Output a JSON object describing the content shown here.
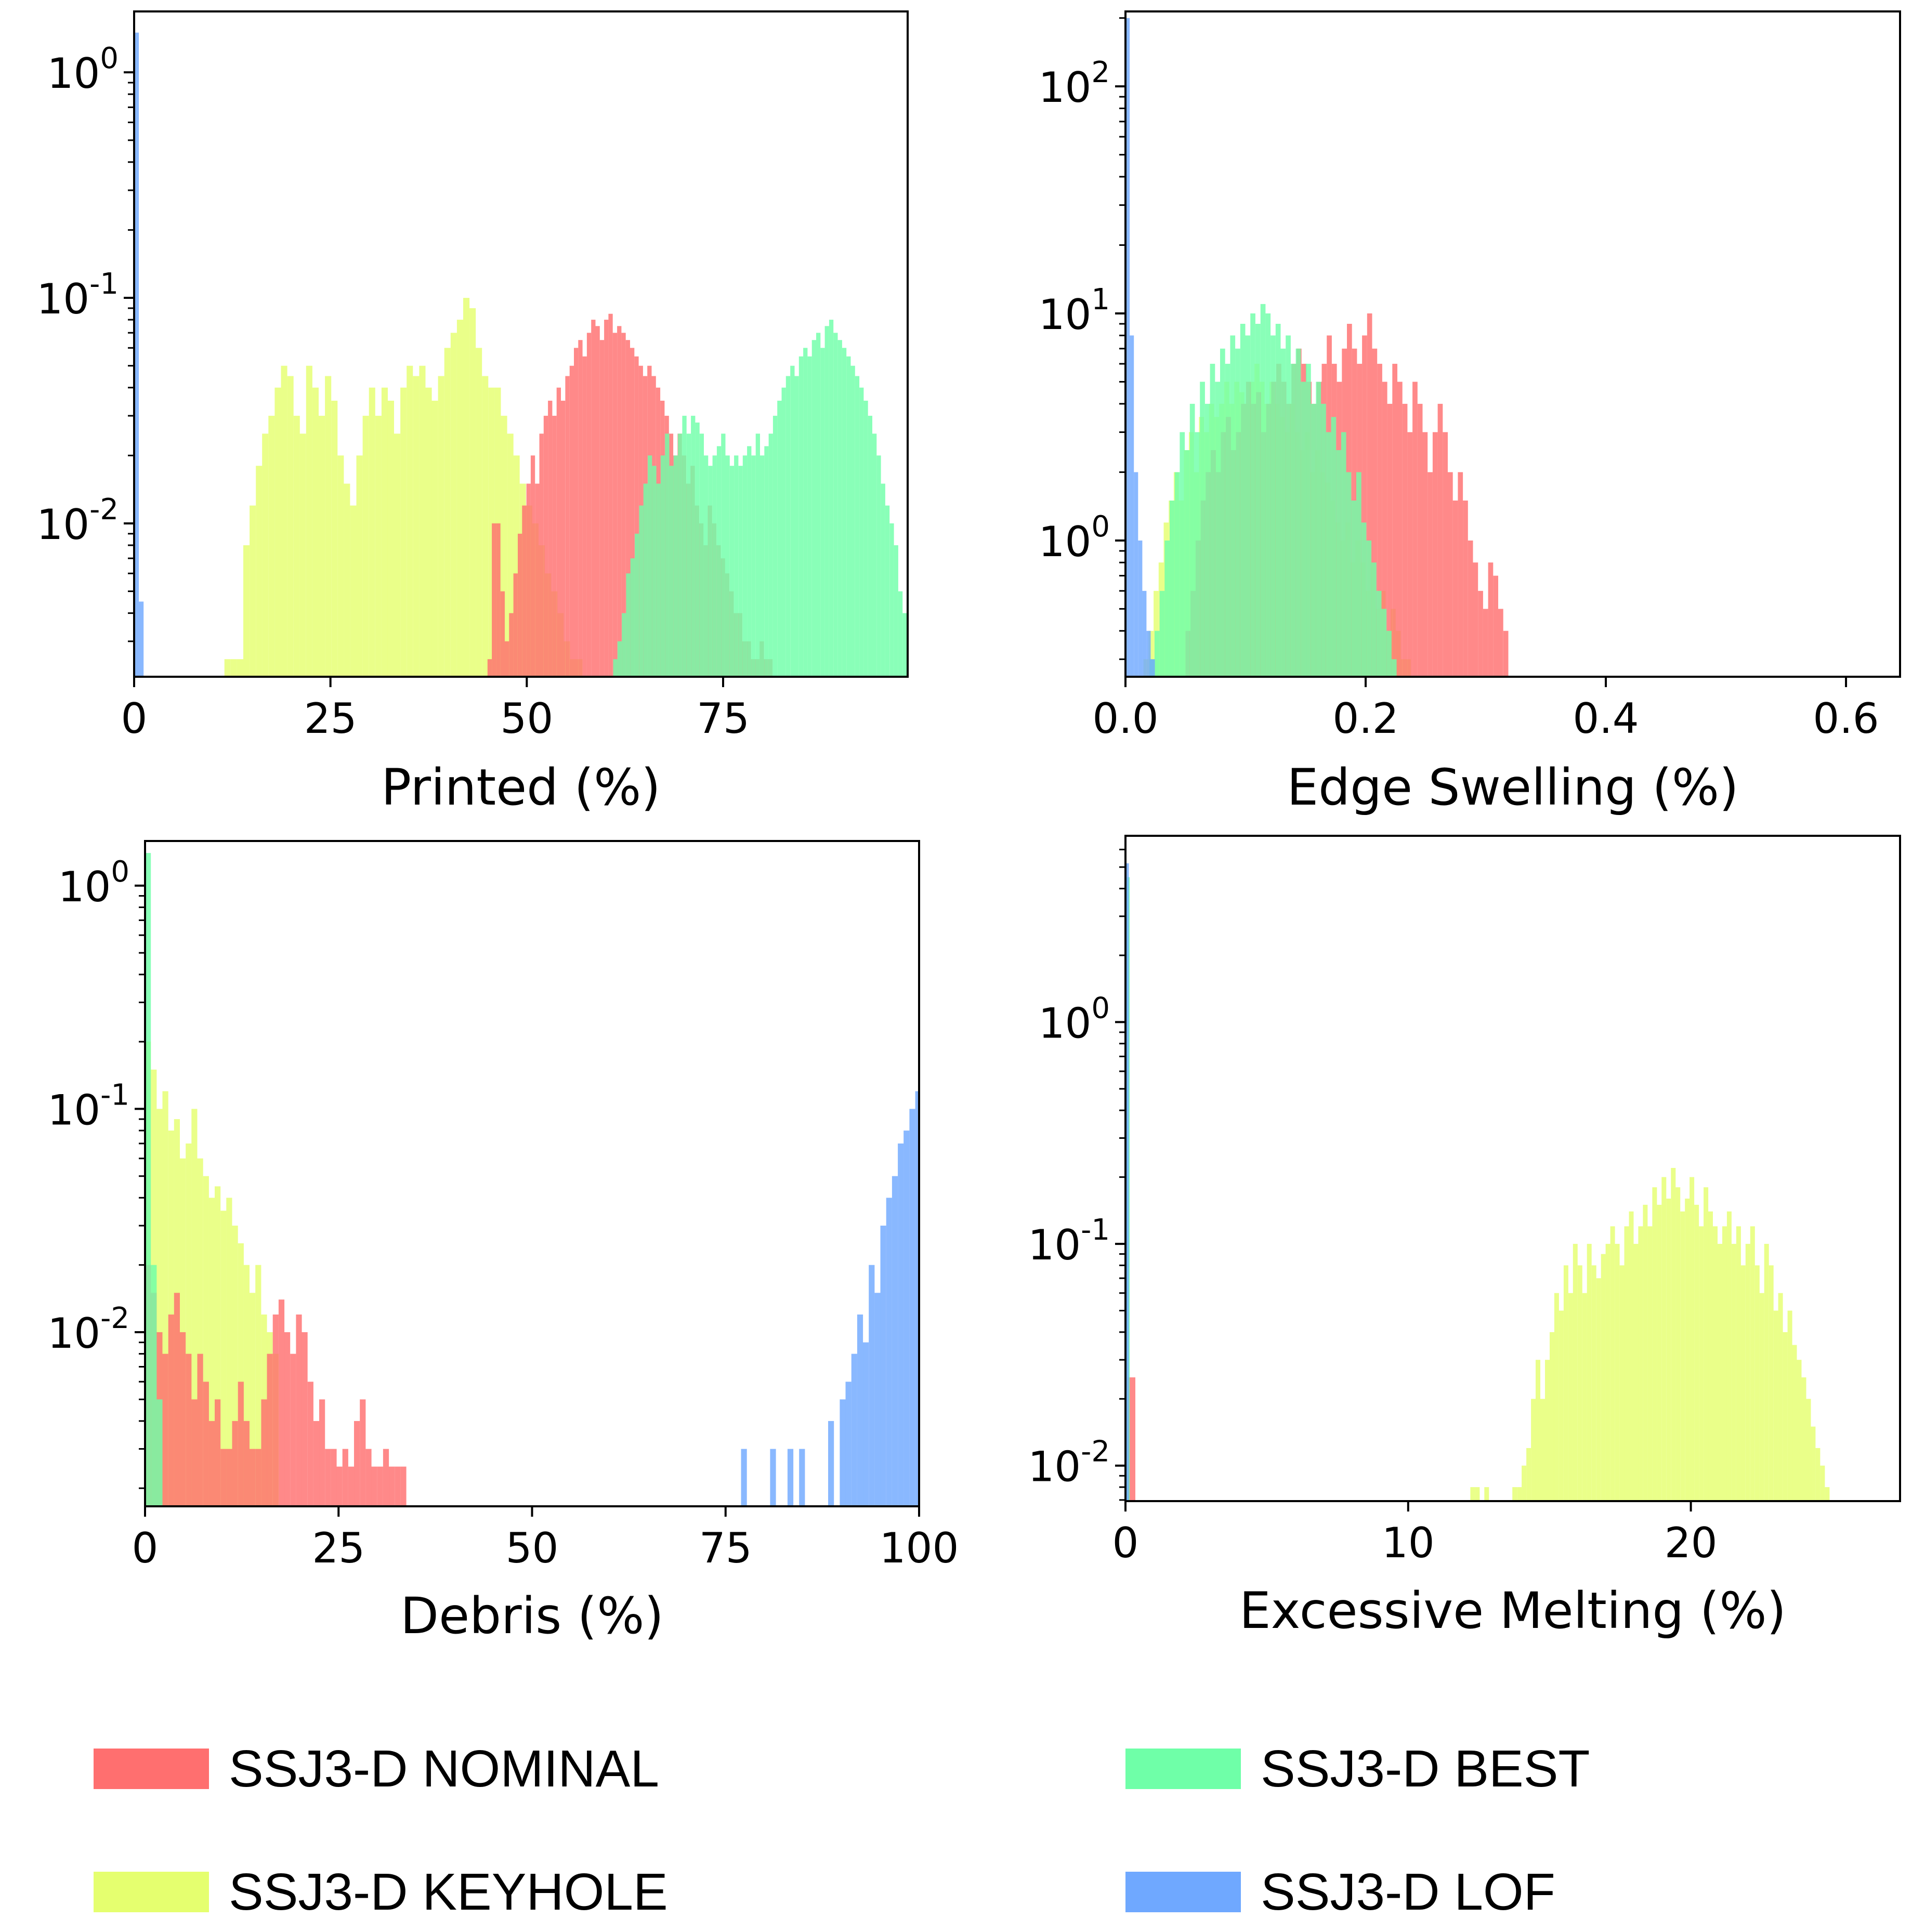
{
  "series_colors": {
    "nominal": "#FF6F6F",
    "best": "#6FFFA8",
    "keyhole": "#E5FF6F",
    "lof": "#6FA8FF"
  },
  "legend": [
    {
      "key": "nominal",
      "label": "SSJ3-D NOMINAL"
    },
    {
      "key": "best",
      "label": "SSJ3-D BEST"
    },
    {
      "key": "keyhole",
      "label": "SSJ3-D KEYHOLE"
    },
    {
      "key": "lof",
      "label": "SSJ3-D LOF"
    }
  ],
  "chart_data": [
    {
      "type": "bar",
      "histogram": true,
      "yscale": "log",
      "xlabel": "Printed (%)",
      "ylabel": "",
      "xlim": [
        0,
        98.5
      ],
      "ylim_log10": [
        -2.68,
        0.27
      ],
      "xticks": [
        {
          "v": 0,
          "label": "0"
        },
        {
          "v": 25,
          "label": "25"
        },
        {
          "v": 50,
          "label": "50"
        },
        {
          "v": 75,
          "label": "75"
        }
      ],
      "yticks": [
        {
          "e": 0,
          "base": "10",
          "exp": "0"
        },
        {
          "e": -1,
          "base": "10",
          "exp": "-1"
        },
        {
          "e": -2,
          "base": "10",
          "exp": "-2"
        }
      ],
      "series": [
        {
          "name": "SSJ3-D KEYHOLE",
          "color_key": "keyhole",
          "x_start": 11.5,
          "bin_width": 0.8,
          "values": [
            0.0025,
            0.0025,
            0.0025,
            0.008,
            0.012,
            0.018,
            0.025,
            0.03,
            0.04,
            0.05,
            0.045,
            0.03,
            0.025,
            0.05,
            0.04,
            0.03,
            0.045,
            0.035,
            0.02,
            0.015,
            0.012,
            0.02,
            0.03,
            0.04,
            0.03,
            0.04,
            0.035,
            0.025,
            0.04,
            0.05,
            0.045,
            0.05,
            0.04,
            0.035,
            0.045,
            0.06,
            0.07,
            0.08,
            0.1,
            0.09,
            0.06,
            0.045,
            0.04,
            0.04,
            0.03,
            0.025,
            0.02,
            0.015,
            0.012,
            0.01,
            0.008,
            0.006,
            0.005,
            0.004,
            0.003,
            0.0025,
            0.0025
          ]
        },
        {
          "name": "SSJ3-D NOMINAL",
          "color_key": "nominal",
          "x_start": 45,
          "bin_width": 0.55,
          "values": [
            0.0025,
            0.01,
            0.01,
            0.005,
            0.003,
            0.004,
            0.006,
            0.009,
            0.012,
            0.015,
            0.02,
            0.015,
            0.025,
            0.03,
            0.035,
            0.03,
            0.04,
            0.035,
            0.045,
            0.05,
            0.06,
            0.065,
            0.055,
            0.07,
            0.08,
            0.075,
            0.065,
            0.08,
            0.085,
            0.07,
            0.075,
            0.07,
            0.065,
            0.06,
            0.055,
            0.05,
            0.045,
            0.05,
            0.045,
            0.04,
            0.035,
            0.03,
            0.025,
            0.02,
            0.025,
            0.02,
            0.015,
            0.018,
            0.012,
            0.01,
            0.008,
            0.012,
            0.01,
            0.008,
            0.007,
            0.006,
            0.005,
            0.004,
            0.004,
            0.003,
            0.003,
            0.0025,
            0.0025,
            0.003,
            0.0025,
            0.0025
          ]
        },
        {
          "name": "SSJ3-D BEST",
          "color_key": "best",
          "x_start": 61,
          "bin_width": 0.55,
          "values": [
            0.0025,
            0.003,
            0.004,
            0.006,
            0.007,
            0.009,
            0.012,
            0.015,
            0.02,
            0.018,
            0.015,
            0.02,
            0.025,
            0.018,
            0.02,
            0.025,
            0.03,
            0.025,
            0.03,
            0.028,
            0.025,
            0.02,
            0.018,
            0.02,
            0.022,
            0.025,
            0.02,
            0.018,
            0.02,
            0.018,
            0.02,
            0.022,
            0.02,
            0.025,
            0.02,
            0.022,
            0.025,
            0.03,
            0.035,
            0.04,
            0.045,
            0.05,
            0.045,
            0.055,
            0.06,
            0.055,
            0.065,
            0.07,
            0.06,
            0.075,
            0.08,
            0.07,
            0.065,
            0.06,
            0.055,
            0.05,
            0.045,
            0.04,
            0.035,
            0.03,
            0.025,
            0.02,
            0.015,
            0.012,
            0.01,
            0.008,
            0.005,
            0.004,
            0.003,
            0.0025
          ]
        },
        {
          "name": "SSJ3-D LOF",
          "color_key": "lof",
          "x_start": 0,
          "bin_width": 0.6,
          "values": [
            1.5,
            0.0045
          ]
        }
      ]
    },
    {
      "type": "bar",
      "histogram": true,
      "yscale": "log",
      "xlabel": "Edge Swelling (%)",
      "ylabel": "",
      "xlim": [
        0,
        0.645
      ],
      "ylim_log10": [
        -0.6,
        2.33
      ],
      "xticks": [
        {
          "v": 0,
          "label": "0.0"
        },
        {
          "v": 0.2,
          "label": "0.2"
        },
        {
          "v": 0.4,
          "label": "0.4"
        },
        {
          "v": 0.6,
          "label": "0.6"
        }
      ],
      "yticks": [
        {
          "e": 2,
          "base": "10",
          "exp": "2"
        },
        {
          "e": 1,
          "base": "10",
          "exp": "1"
        },
        {
          "e": 0,
          "base": "10",
          "exp": "0"
        }
      ],
      "series": [
        {
          "name": "SSJ3-D NOMINAL",
          "color_key": "nominal",
          "x_start": 0.05,
          "bin_width": 0.0042,
          "values": [
            0.4,
            0.6,
            1,
            1.5,
            2,
            2.5,
            2,
            3,
            3.5,
            2.5,
            3,
            4,
            5,
            4,
            4.5,
            3,
            4,
            5,
            6,
            5,
            4,
            6,
            7,
            6,
            5,
            4,
            5,
            6,
            8,
            6,
            5,
            7,
            9,
            7,
            6,
            8,
            10,
            7,
            6,
            5,
            4,
            6,
            5,
            4,
            3,
            5,
            4,
            3,
            2,
            3,
            4,
            3,
            2,
            1.5,
            2,
            1.5,
            1,
            0.8,
            0.6,
            0.5,
            0.8,
            0.7,
            0.5,
            0.4
          ]
        },
        {
          "name": "SSJ3-D KEYHOLE",
          "color_key": "keyhole",
          "x_start": 0.015,
          "bin_width": 0.0042,
          "values": [
            0.3,
            0.4,
            0.6,
            0.8,
            1.2,
            1.5,
            2,
            1.5,
            2.5,
            3,
            2,
            3.5,
            3,
            4,
            3.5,
            4,
            5,
            4,
            5,
            4.5,
            4,
            5,
            6,
            5,
            4,
            5,
            4,
            3.5,
            3,
            4,
            3,
            2.5,
            3,
            2,
            2.5,
            2,
            1.8,
            1.5,
            1.2,
            1,
            1.2,
            0.8,
            1,
            0.8,
            0.6,
            0.8,
            0.5,
            0.6,
            0.4,
            0.5,
            0.4,
            0.3,
            0.3
          ]
        },
        {
          "name": "SSJ3-D BEST",
          "color_key": "best",
          "x_start": 0.02,
          "bin_width": 0.0042,
          "values": [
            0.3,
            0.4,
            0.6,
            1,
            1.5,
            2,
            3,
            2.5,
            4,
            3,
            5,
            4,
            6,
            5,
            7,
            6,
            8,
            7,
            9,
            8,
            10,
            9,
            11,
            10,
            8,
            9,
            7,
            8,
            6,
            7,
            5,
            6,
            4,
            5,
            4,
            3,
            3.5,
            2.5,
            3,
            2,
            1.5,
            2,
            1.2,
            1,
            0.8,
            0.6,
            0.5,
            0.4,
            0.3
          ]
        },
        {
          "name": "SSJ3-D LOF",
          "color_key": "lof",
          "x_start": 0,
          "bin_width": 0.0035,
          "values": [
            200,
            8,
            2,
            1,
            0.6,
            0.4,
            0.3
          ]
        }
      ]
    },
    {
      "type": "bar",
      "histogram": true,
      "yscale": "log",
      "xlabel": "Debris (%)",
      "ylabel": "",
      "xlim": [
        0,
        100
      ],
      "ylim_log10": [
        -2.78,
        0.2
      ],
      "xticks": [
        {
          "v": 0,
          "label": "0"
        },
        {
          "v": 25,
          "label": "25"
        },
        {
          "v": 50,
          "label": "50"
        },
        {
          "v": 75,
          "label": "75"
        },
        {
          "v": 100,
          "label": "100"
        }
      ],
      "yticks": [
        {
          "e": 0,
          "base": "10",
          "exp": "0"
        },
        {
          "e": -1,
          "base": "10",
          "exp": "-1"
        },
        {
          "e": -2,
          "base": "10",
          "exp": "-2"
        }
      ],
      "series": [
        {
          "name": "SSJ3-D NOMINAL",
          "color_key": "nominal",
          "x_start": 0,
          "bin_width": 0.75,
          "values": [
            0.02,
            0.015,
            0.01,
            0.008,
            0.012,
            0.015,
            0.01,
            0.008,
            0.005,
            0.008,
            0.006,
            0.004,
            0.005,
            0.003,
            0.003,
            0.004,
            0.006,
            0.004,
            0.003,
            0.003,
            0.005,
            0.008,
            0.012,
            0.014,
            0.01,
            0.008,
            0.012,
            0.01,
            0.006,
            0.004,
            0.005,
            0.003,
            0.003,
            0.0025,
            0.003,
            0.0025,
            0.004,
            0.005,
            0.003,
            0.0025,
            0.0025,
            0.003,
            0.0025,
            0.0025,
            0.0025
          ]
        },
        {
          "name": "SSJ3-D KEYHOLE",
          "color_key": "keyhole",
          "x_start": 0,
          "bin_width": 0.75,
          "values": [
            0.2,
            0.15,
            0.1,
            0.12,
            0.08,
            0.09,
            0.06,
            0.07,
            0.1,
            0.06,
            0.05,
            0.04,
            0.045,
            0.035,
            0.04,
            0.03,
            0.025,
            0.02,
            0.015,
            0.02,
            0.012,
            0.01,
            0.008
          ]
        },
        {
          "name": "SSJ3-D BEST",
          "color_key": "best",
          "x_start": 0,
          "bin_width": 0.75,
          "values": [
            1.4,
            0.02,
            0.005
          ]
        },
        {
          "name": "SSJ3-D LOF",
          "color_key": "lof",
          "x_start": 77,
          "bin_width": 0.75,
          "values": [
            0.003,
            0,
            0,
            0,
            0,
            0.003,
            0,
            0,
            0.003,
            0,
            0.003,
            0,
            0,
            0,
            0,
            0.004,
            0,
            0.005,
            0.006,
            0.008,
            0.012,
            0.009,
            0.02,
            0.015,
            0.03,
            0.04,
            0.05,
            0.07,
            0.08,
            0.1,
            0.12,
            0.18,
            0.3
          ]
        }
      ]
    },
    {
      "type": "bar",
      "histogram": true,
      "yscale": "log",
      "xlabel": "Excessive Melting (%)",
      "ylabel": "",
      "xlim": [
        0,
        27.4
      ],
      "ylim_log10": [
        -2.16,
        0.84
      ],
      "xticks": [
        {
          "v": 0,
          "label": "0"
        },
        {
          "v": 10,
          "label": "10"
        },
        {
          "v": 20,
          "label": "20"
        }
      ],
      "yticks": [
        {
          "e": 0,
          "base": "10",
          "exp": "0"
        },
        {
          "e": -1,
          "base": "10",
          "exp": "-1"
        },
        {
          "e": -2,
          "base": "10",
          "exp": "-2"
        }
      ],
      "series": [
        {
          "name": "SSJ3-D KEYHOLE",
          "color_key": "keyhole",
          "x_start": 12.2,
          "bin_width": 0.165,
          "values": [
            0.008,
            0.008,
            0,
            0.008,
            0,
            0,
            0,
            0,
            0,
            0.008,
            0.008,
            0.01,
            0.012,
            0.02,
            0.03,
            0.02,
            0.03,
            0.04,
            0.06,
            0.05,
            0.08,
            0.06,
            0.1,
            0.08,
            0.06,
            0.1,
            0.08,
            0.07,
            0.09,
            0.1,
            0.12,
            0.1,
            0.08,
            0.12,
            0.14,
            0.1,
            0.12,
            0.15,
            0.12,
            0.18,
            0.15,
            0.2,
            0.16,
            0.22,
            0.18,
            0.14,
            0.16,
            0.2,
            0.15,
            0.12,
            0.18,
            0.14,
            0.12,
            0.1,
            0.12,
            0.14,
            0.1,
            0.12,
            0.08,
            0.1,
            0.12,
            0.08,
            0.06,
            0.1,
            0.08,
            0.05,
            0.06,
            0.04,
            0.05,
            0.035,
            0.03,
            0.025,
            0.02,
            0.015,
            0.012,
            0.01,
            0.008,
            0.006,
            0.005,
            0.004,
            0.003
          ]
        },
        {
          "name": "SSJ3-D NOMINAL",
          "color_key": "nominal",
          "x_start": 0.05,
          "bin_width": 0.3,
          "values": [
            0.025
          ]
        },
        {
          "name": "SSJ3-D BEST",
          "color_key": "best",
          "x_start": 0,
          "bin_width": 0.15,
          "values": [
            4.5
          ]
        },
        {
          "name": "SSJ3-D LOF",
          "color_key": "lof",
          "x_start": 0,
          "bin_width": 0.12,
          "values": [
            5.2
          ]
        }
      ]
    }
  ]
}
